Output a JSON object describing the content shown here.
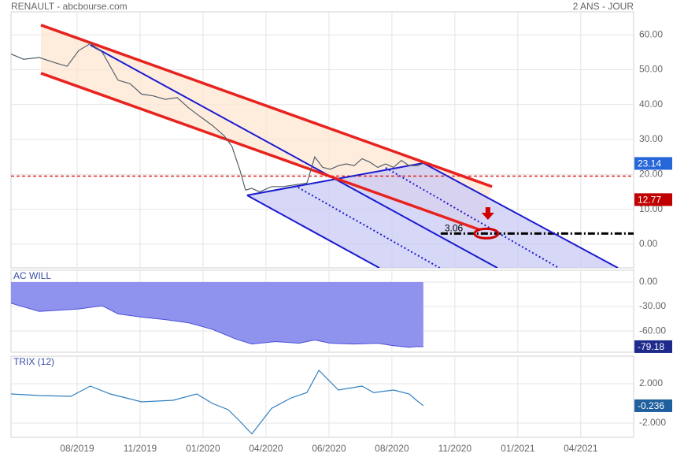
{
  "header": {
    "left": "RENAULT - abcbourse.com",
    "right": "2 ANS - JOUR"
  },
  "chart_data": [
    {
      "type": "line",
      "xlim": [
        -0.5,
        98.4
      ],
      "ylim": [
        -6.8,
        66.6
      ],
      "grid": true,
      "yticks": [
        {
          "value": 0,
          "label": "0.00"
        },
        {
          "value": 10,
          "label": "10.00"
        },
        {
          "value": 20,
          "label": "20.00"
        },
        {
          "value": 30,
          "label": "30.00"
        },
        {
          "value": 40,
          "label": "40.00"
        },
        {
          "value": 50,
          "label": "50.00"
        },
        {
          "value": 60,
          "label": "60.00"
        }
      ],
      "fills": [
        {
          "color": "#fde6d2",
          "x": [
            4.25,
            75.9,
            74,
            4.25
          ],
          "y": [
            62.8,
            16.5,
            4.1,
            49
          ]
        },
        {
          "color": "#c9c9f4",
          "x": [
            37,
            65,
            95.9,
            58
          ],
          "y": [
            14,
            23.25,
            -6.8,
            -6.8
          ]
        }
      ],
      "trendlines": [
        {
          "color": "#1a1ad0",
          "width": 2,
          "style": "solid",
          "x": [
            12.1,
            76.75
          ],
          "y": [
            57.1,
            -6.8
          ]
        },
        {
          "color": "#1a1ad0",
          "width": 2,
          "style": "solid",
          "x": [
            37,
            65
          ],
          "y": [
            14,
            23.25
          ]
        },
        {
          "color": "#1a1ad0",
          "width": 2,
          "style": "solid",
          "x": [
            65,
            95.9
          ],
          "y": [
            23.25,
            -6.8
          ]
        },
        {
          "color": "#1a1ad0",
          "width": 2,
          "style": "solid",
          "x": [
            37,
            58
          ],
          "y": [
            14,
            -6.8
          ]
        },
        {
          "color": "#1a1ad0",
          "width": 2,
          "style": "dotted",
          "x": [
            45.1,
            67.6
          ],
          "y": [
            16.25,
            -6.8
          ]
        },
        {
          "color": "#1a1ad0",
          "width": 2,
          "style": "dotted",
          "x": [
            59,
            86.5
          ],
          "y": [
            21.9,
            -6.8
          ]
        },
        {
          "color": "#e8231f",
          "width": 3.5,
          "style": "solid",
          "x": [
            4.25,
            75.9
          ],
          "y": [
            62.8,
            16.5
          ]
        },
        {
          "color": "#e8231f",
          "width": 3.5,
          "style": "solid",
          "x": [
            4.25,
            74
          ],
          "y": [
            49,
            4.1
          ]
        }
      ],
      "hlines": [
        {
          "value": 19.5,
          "color": "#e02020",
          "style": "dashed"
        },
        {
          "value": 3.06,
          "label": "3.06",
          "color": "#000000",
          "style": "dashdot",
          "x": [
            67.75,
            98.4
          ]
        }
      ],
      "markers": [
        {
          "type": "ellipse",
          "x": 75,
          "y": 3.06,
          "color": "#d00000"
        },
        {
          "type": "arrow",
          "x": 75.25,
          "y": 9,
          "color": "#d00000"
        }
      ],
      "series": [
        {
          "color": "#56606a",
          "x": [
            -0.5,
            1.5,
            4,
            6.5,
            8.4,
            10.25,
            12.1,
            14,
            16.5,
            18.4,
            20.25,
            22.1,
            24,
            25.9,
            27.75,
            29.6,
            31.5,
            33.4,
            34.6,
            35.9,
            36.75,
            37.75,
            39,
            40.9,
            42.75,
            44.6,
            46.5,
            47.75,
            49,
            50.25,
            51.5,
            52.75,
            54,
            55.25,
            56.5,
            57.75,
            59,
            60.25,
            61.5,
            62.75,
            64,
            65
          ],
          "values": [
            54.5,
            53,
            53.5,
            52,
            51,
            55.5,
            57.5,
            55,
            47,
            46,
            43,
            42.5,
            41.5,
            42,
            39,
            36.5,
            34,
            31,
            28,
            21,
            15.5,
            16,
            15,
            16.5,
            16.5,
            17,
            17.5,
            25,
            22,
            21.5,
            22.5,
            23,
            22.5,
            24.5,
            23.5,
            22,
            23,
            22,
            24,
            22.5,
            22.5,
            23.14
          ]
        }
      ],
      "last_labels": [
        {
          "value": 23.14,
          "label": "23.14",
          "color": "#2566d8"
        },
        {
          "value": 12.77,
          "label": "12.77",
          "color": "#c00000"
        }
      ]
    },
    {
      "type": "area",
      "title": "AC WILL",
      "xlim": [
        -0.5,
        98.4
      ],
      "ylim": [
        -86,
        14.5
      ],
      "grid": true,
      "yticks": [
        {
          "value": 0,
          "label": "0.00"
        },
        {
          "value": -30,
          "label": "-30.00"
        },
        {
          "value": -60,
          "label": "-60.00"
        }
      ],
      "series": [
        {
          "color": "#4a50d8",
          "fill": "#9093ee",
          "x": [
            -0.5,
            4,
            10.25,
            14,
            16.5,
            20.25,
            24,
            27.75,
            31.5,
            35.25,
            37.75,
            41.5,
            45.25,
            47.75,
            50.25,
            54,
            57.75,
            60.25,
            62.75,
            64,
            65
          ],
          "values": [
            -26,
            -36,
            -33,
            -29,
            -39,
            -43,
            -46,
            -50,
            -58,
            -70,
            -76,
            -73,
            -75,
            -71,
            -75,
            -76,
            -75,
            -78,
            -80,
            -79,
            -79.18
          ]
        }
      ],
      "last_labels": [
        {
          "value": -79.18,
          "label": "-79.18",
          "color": "#1d2a8c"
        }
      ]
    },
    {
      "type": "line",
      "title": "TRIX (12)",
      "xlim": [
        -0.5,
        98.4
      ],
      "ylim": [
        -3.44,
        4.8
      ],
      "grid": true,
      "yticks": [
        {
          "value": 2,
          "label": "2.000"
        },
        {
          "value": -2,
          "label": "-2.000"
        }
      ],
      "xticks": [
        {
          "value": 10,
          "label": "08/2019"
        },
        {
          "value": 20,
          "label": "11/2019"
        },
        {
          "value": 30,
          "label": "01/2020"
        },
        {
          "value": 40,
          "label": "04/2020"
        },
        {
          "value": 50,
          "label": "06/2020"
        },
        {
          "value": 60,
          "label": "08/2020"
        },
        {
          "value": 70,
          "label": "11/2020"
        },
        {
          "value": 80,
          "label": "01/2021"
        },
        {
          "value": 90,
          "label": "04/2021"
        }
      ],
      "series": [
        {
          "color": "#2f7fc1",
          "x": [
            -0.5,
            4,
            9,
            12.1,
            15.25,
            17.75,
            20.25,
            25.25,
            29,
            31.5,
            34,
            35.9,
            37.75,
            40.9,
            44,
            46.5,
            48.4,
            51.5,
            55.25,
            57.1,
            60.25,
            62.75,
            63.75,
            65
          ],
          "values": [
            0.96,
            0.8,
            0.72,
            1.76,
            0.96,
            0.56,
            0.16,
            0.32,
            0.96,
            0,
            -0.64,
            -1.84,
            -3.1,
            -0.5,
            0.56,
            1.1,
            3.36,
            1.36,
            1.76,
            1.1,
            1.36,
            0.96,
            0.4,
            -0.236
          ]
        }
      ],
      "last_labels": [
        {
          "value": -0.236,
          "label": "-0.236",
          "color": "#1f5f9e"
        }
      ]
    }
  ]
}
